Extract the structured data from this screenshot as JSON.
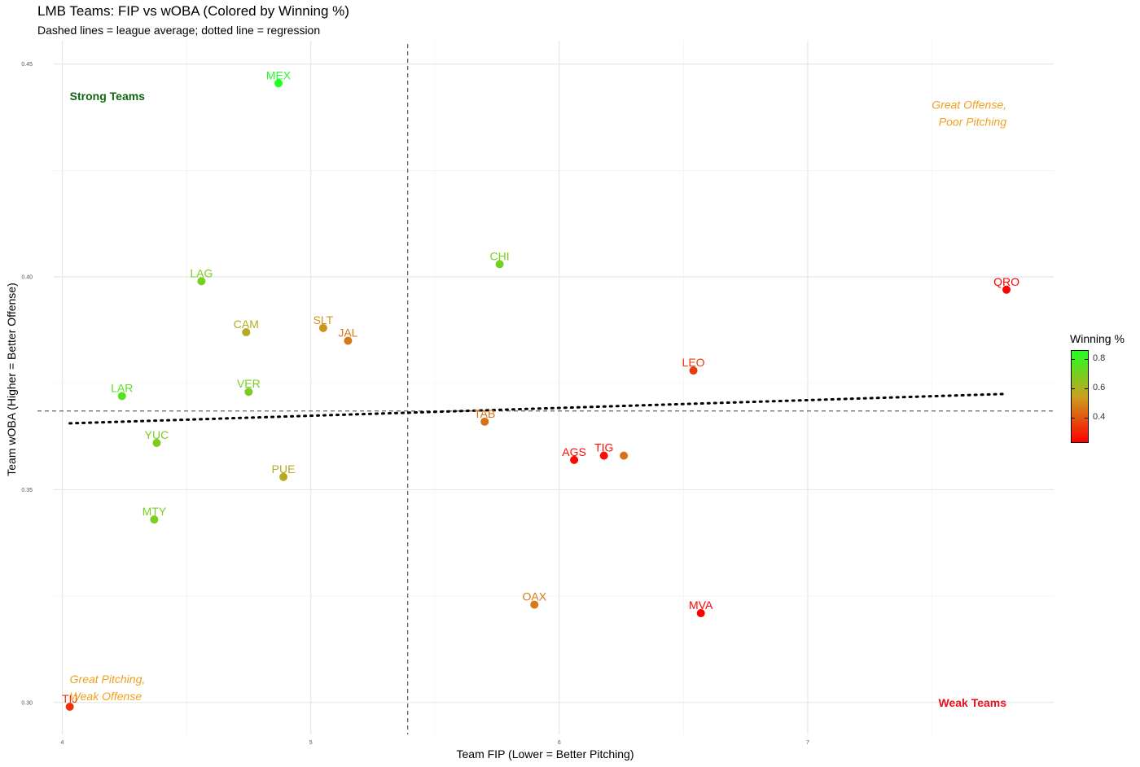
{
  "chart_data": {
    "type": "scatter",
    "title": "LMB Teams: FIP vs wOBA (Colored by Winning %)",
    "subtitle": "Dashed lines = league average; dotted line = regression",
    "xlabel": "Team FIP (Lower = Better Pitching)",
    "ylabel": "Team wOBA (Higher = Better Offense)",
    "xlim": [
      3.9,
      7.99
    ],
    "ylim": [
      0.2925,
      0.4555
    ],
    "x_ticks": [
      "4",
      "5",
      "6",
      "7"
    ],
    "y_ticks": [
      "0.30",
      "0.35",
      "0.40",
      "0.45"
    ],
    "grid": true,
    "league_average": {
      "fip": 5.39,
      "woba": 0.3685
    },
    "regression": {
      "x": [
        4.03,
        7.79
      ],
      "y": [
        0.3656,
        0.3725
      ]
    },
    "points": [
      {
        "label": "MEX",
        "fip": 4.87,
        "woba": 0.4455,
        "win_pct": 0.86
      },
      {
        "label": "CHI",
        "fip": 5.76,
        "woba": 0.403,
        "win_pct": 0.7
      },
      {
        "label": "LAG",
        "fip": 4.56,
        "woba": 0.399,
        "win_pct": 0.7
      },
      {
        "label": "QRO",
        "fip": 7.8,
        "woba": 0.397,
        "win_pct": 0.23
      },
      {
        "label": "CAM",
        "fip": 4.74,
        "woba": 0.387,
        "win_pct": 0.58
      },
      {
        "label": "SLT",
        "fip": 5.05,
        "woba": 0.388,
        "win_pct": 0.52
      },
      {
        "label": "JAL",
        "fip": 5.15,
        "woba": 0.385,
        "win_pct": 0.47
      },
      {
        "label": "LEO",
        "fip": 6.54,
        "woba": 0.378,
        "win_pct": 0.34
      },
      {
        "label": "LAR",
        "fip": 4.24,
        "woba": 0.372,
        "win_pct": 0.76
      },
      {
        "label": "VER",
        "fip": 4.75,
        "woba": 0.373,
        "win_pct": 0.69
      },
      {
        "label": "TAB",
        "fip": 5.7,
        "woba": 0.366,
        "win_pct": 0.45
      },
      {
        "label": "YUC",
        "fip": 4.38,
        "woba": 0.361,
        "win_pct": 0.69
      },
      {
        "label": "AGS",
        "fip": 6.06,
        "woba": 0.357,
        "win_pct": 0.25
      },
      {
        "label": "TIG",
        "fip": 6.18,
        "woba": 0.358,
        "win_pct": 0.26
      },
      {
        "label": "",
        "fip": 6.26,
        "woba": 0.358,
        "win_pct": 0.45
      },
      {
        "label": "PUE",
        "fip": 4.89,
        "woba": 0.353,
        "win_pct": 0.58
      },
      {
        "label": "MTY",
        "fip": 4.37,
        "woba": 0.343,
        "win_pct": 0.7
      },
      {
        "label": "OAX",
        "fip": 5.9,
        "woba": 0.323,
        "win_pct": 0.47
      },
      {
        "label": "MVA",
        "fip": 6.57,
        "woba": 0.321,
        "win_pct": 0.23
      },
      {
        "label": "TIJ",
        "fip": 4.03,
        "woba": 0.299,
        "win_pct": 0.33
      }
    ],
    "annotations": [
      {
        "text": "Strong Teams",
        "fip": 4.03,
        "woba": 0.4425,
        "color": "#116611",
        "style": "bold",
        "anchor": "start"
      },
      {
        "text": "Great Offense,",
        "fip": 7.8,
        "woba": 0.4405,
        "color": "#F0A020",
        "style": "italic",
        "anchor": "end"
      },
      {
        "text": "Poor Pitching",
        "fip": 7.8,
        "woba": 0.4365,
        "color": "#F0A020",
        "style": "italic",
        "anchor": "end"
      },
      {
        "text": "Great Pitching,",
        "fip": 4.03,
        "woba": 0.3055,
        "color": "#F0A020",
        "style": "italic",
        "anchor": "start"
      },
      {
        "text": "Weak Offense",
        "fip": 4.03,
        "woba": 0.3015,
        "color": "#F0A020",
        "style": "italic",
        "anchor": "start"
      },
      {
        "text": "Weak Teams",
        "fip": 7.8,
        "woba": 0.3,
        "color": "#E8101E",
        "style": "bold",
        "anchor": "end"
      }
    ],
    "color_scale": {
      "title": "Winning %",
      "min": 0.23,
      "max": 0.86,
      "low_color": "#FF0000",
      "mid_color": "#C9A01E",
      "high_color": "#22FF22",
      "ticks": [
        "0.4",
        "0.6",
        "0.8"
      ],
      "tick_values": [
        0.4,
        0.6,
        0.8
      ]
    }
  }
}
